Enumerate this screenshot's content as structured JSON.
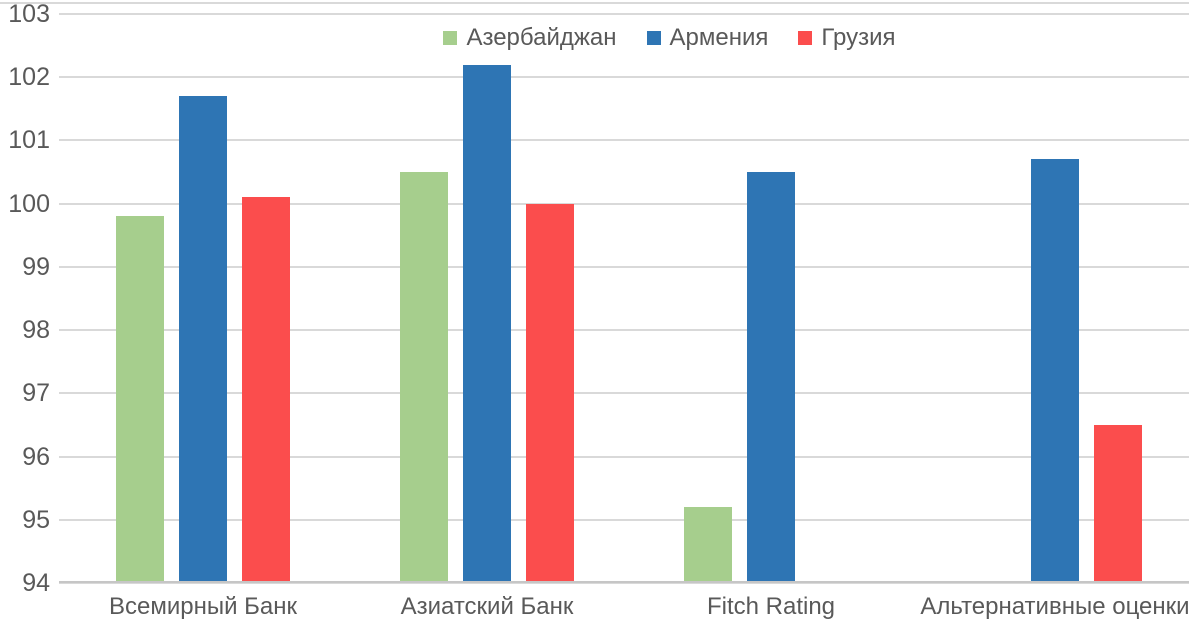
{
  "chart_data": {
    "type": "bar",
    "title": "",
    "xlabel": "",
    "ylabel": "",
    "categories": [
      "Всемирный Банк",
      "Азиатский Банк",
      "Fitch Rating",
      "Альтернативные оценки"
    ],
    "series": [
      {
        "name": "Азербайджан",
        "color": "#A6CE8D",
        "values": [
          99.8,
          100.5,
          95.2,
          null
        ]
      },
      {
        "name": "Армения",
        "color": "#2E75B4",
        "values": [
          101.7,
          102.2,
          100.5,
          100.7
        ]
      },
      {
        "name": "Грузия",
        "color": "#FB4D4D",
        "values": [
          100.1,
          100.0,
          null,
          96.5
        ]
      }
    ],
    "ylim": [
      94,
      103
    ],
    "ytick_step": 1,
    "yticks": [
      94,
      95,
      96,
      97,
      98,
      99,
      100,
      101,
      102,
      103
    ],
    "grid": true,
    "legend_position": "top-center"
  },
  "colors": {
    "gridline": "#D9D9D9",
    "axis_line": "#C6C6C6",
    "text": "#595959",
    "background": "#FFFFFF"
  }
}
